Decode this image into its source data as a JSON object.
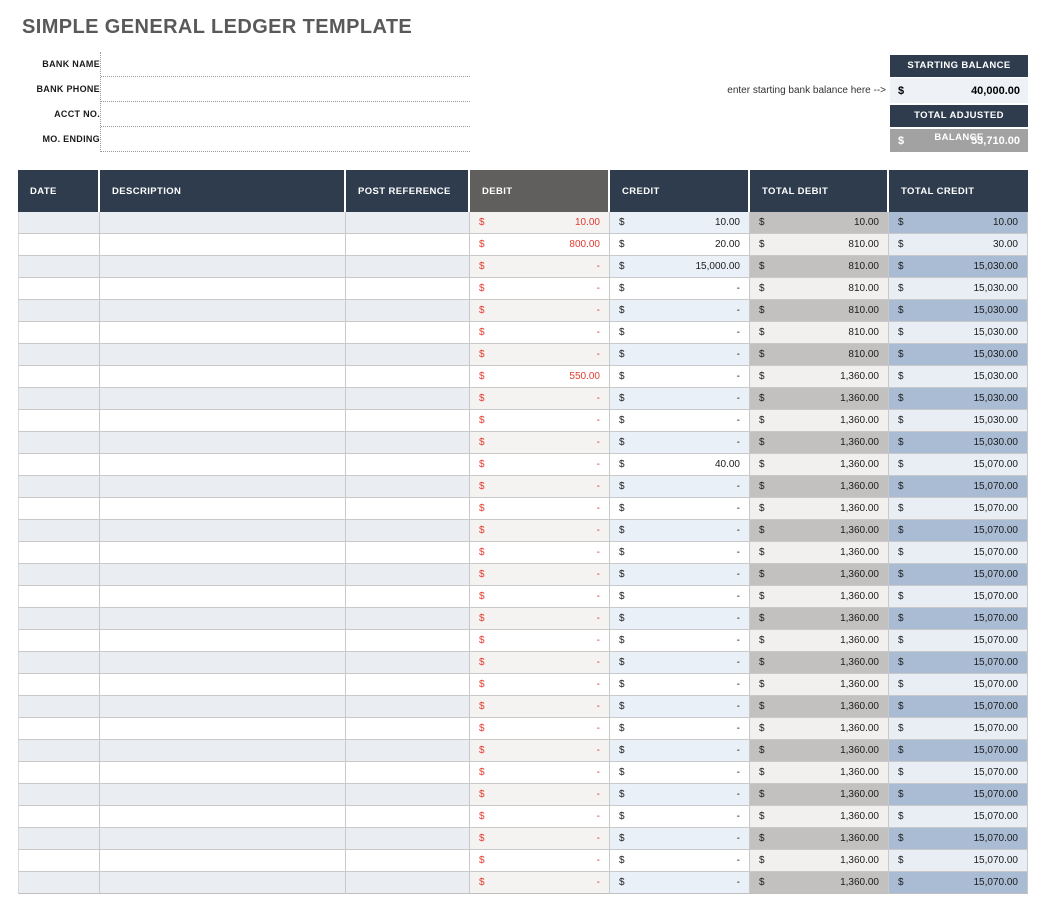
{
  "title": "SIMPLE GENERAL LEDGER TEMPLATE",
  "bank_info": {
    "fields": [
      {
        "label": "BANK NAME",
        "value": ""
      },
      {
        "label": "BANK PHONE",
        "value": ""
      },
      {
        "label": "ACCT NO.",
        "value": ""
      },
      {
        "label": "MO. ENDING",
        "value": ""
      }
    ]
  },
  "balance_panel": {
    "note": "enter starting bank balance here -->",
    "starting_balance_label": "STARTING BALANCE",
    "starting_balance_currency": "$",
    "starting_balance_value": "40,000.00",
    "adjusted_balance_label": "TOTAL ADJUSTED BALANCE",
    "adjusted_balance_currency": "$",
    "adjusted_balance_value": "53,710.00"
  },
  "colors": {
    "header_navy": "#2f3c4e",
    "debit_header_gray": "#605f5e",
    "debit_text_red": "#e23b2e",
    "adjusted_balance_gray": "#a2a2a2",
    "title_gray": "#595959",
    "total_debit_shade": "#c2c1bf",
    "total_credit_shade": "#a9bcd3"
  },
  "table": {
    "currency_symbol": "$",
    "columns": [
      "DATE",
      "DESCRIPTION",
      "POST REFERENCE",
      "DEBIT",
      "CREDIT",
      "TOTAL DEBIT",
      "TOTAL CREDIT"
    ],
    "rows": [
      {
        "date": "",
        "description": "",
        "post_reference": "",
        "debit": "10.00",
        "credit": "10.00",
        "total_debit": "10.00",
        "total_credit": "10.00"
      },
      {
        "date": "",
        "description": "",
        "post_reference": "",
        "debit": "800.00",
        "credit": "20.00",
        "total_debit": "810.00",
        "total_credit": "30.00"
      },
      {
        "date": "",
        "description": "",
        "post_reference": "",
        "debit": "-",
        "credit": "15,000.00",
        "total_debit": "810.00",
        "total_credit": "15,030.00"
      },
      {
        "date": "",
        "description": "",
        "post_reference": "",
        "debit": "-",
        "credit": "-",
        "total_debit": "810.00",
        "total_credit": "15,030.00"
      },
      {
        "date": "",
        "description": "",
        "post_reference": "",
        "debit": "-",
        "credit": "-",
        "total_debit": "810.00",
        "total_credit": "15,030.00"
      },
      {
        "date": "",
        "description": "",
        "post_reference": "",
        "debit": "-",
        "credit": "-",
        "total_debit": "810.00",
        "total_credit": "15,030.00"
      },
      {
        "date": "",
        "description": "",
        "post_reference": "",
        "debit": "-",
        "credit": "-",
        "total_debit": "810.00",
        "total_credit": "15,030.00"
      },
      {
        "date": "",
        "description": "",
        "post_reference": "",
        "debit": "550.00",
        "credit": "-",
        "total_debit": "1,360.00",
        "total_credit": "15,030.00"
      },
      {
        "date": "",
        "description": "",
        "post_reference": "",
        "debit": "-",
        "credit": "-",
        "total_debit": "1,360.00",
        "total_credit": "15,030.00"
      },
      {
        "date": "",
        "description": "",
        "post_reference": "",
        "debit": "-",
        "credit": "-",
        "total_debit": "1,360.00",
        "total_credit": "15,030.00"
      },
      {
        "date": "",
        "description": "",
        "post_reference": "",
        "debit": "-",
        "credit": "-",
        "total_debit": "1,360.00",
        "total_credit": "15,030.00"
      },
      {
        "date": "",
        "description": "",
        "post_reference": "",
        "debit": "-",
        "credit": "40.00",
        "total_debit": "1,360.00",
        "total_credit": "15,070.00"
      },
      {
        "date": "",
        "description": "",
        "post_reference": "",
        "debit": "-",
        "credit": "-",
        "total_debit": "1,360.00",
        "total_credit": "15,070.00"
      },
      {
        "date": "",
        "description": "",
        "post_reference": "",
        "debit": "-",
        "credit": "-",
        "total_debit": "1,360.00",
        "total_credit": "15,070.00"
      },
      {
        "date": "",
        "description": "",
        "post_reference": "",
        "debit": "-",
        "credit": "-",
        "total_debit": "1,360.00",
        "total_credit": "15,070.00"
      },
      {
        "date": "",
        "description": "",
        "post_reference": "",
        "debit": "-",
        "credit": "-",
        "total_debit": "1,360.00",
        "total_credit": "15,070.00"
      },
      {
        "date": "",
        "description": "",
        "post_reference": "",
        "debit": "-",
        "credit": "-",
        "total_debit": "1,360.00",
        "total_credit": "15,070.00"
      },
      {
        "date": "",
        "description": "",
        "post_reference": "",
        "debit": "-",
        "credit": "-",
        "total_debit": "1,360.00",
        "total_credit": "15,070.00"
      },
      {
        "date": "",
        "description": "",
        "post_reference": "",
        "debit": "-",
        "credit": "-",
        "total_debit": "1,360.00",
        "total_credit": "15,070.00"
      },
      {
        "date": "",
        "description": "",
        "post_reference": "",
        "debit": "-",
        "credit": "-",
        "total_debit": "1,360.00",
        "total_credit": "15,070.00"
      },
      {
        "date": "",
        "description": "",
        "post_reference": "",
        "debit": "-",
        "credit": "-",
        "total_debit": "1,360.00",
        "total_credit": "15,070.00"
      },
      {
        "date": "",
        "description": "",
        "post_reference": "",
        "debit": "-",
        "credit": "-",
        "total_debit": "1,360.00",
        "total_credit": "15,070.00"
      },
      {
        "date": "",
        "description": "",
        "post_reference": "",
        "debit": "-",
        "credit": "-",
        "total_debit": "1,360.00",
        "total_credit": "15,070.00"
      },
      {
        "date": "",
        "description": "",
        "post_reference": "",
        "debit": "-",
        "credit": "-",
        "total_debit": "1,360.00",
        "total_credit": "15,070.00"
      },
      {
        "date": "",
        "description": "",
        "post_reference": "",
        "debit": "-",
        "credit": "-",
        "total_debit": "1,360.00",
        "total_credit": "15,070.00"
      },
      {
        "date": "",
        "description": "",
        "post_reference": "",
        "debit": "-",
        "credit": "-",
        "total_debit": "1,360.00",
        "total_credit": "15,070.00"
      },
      {
        "date": "",
        "description": "",
        "post_reference": "",
        "debit": "-",
        "credit": "-",
        "total_debit": "1,360.00",
        "total_credit": "15,070.00"
      },
      {
        "date": "",
        "description": "",
        "post_reference": "",
        "debit": "-",
        "credit": "-",
        "total_debit": "1,360.00",
        "total_credit": "15,070.00"
      },
      {
        "date": "",
        "description": "",
        "post_reference": "",
        "debit": "-",
        "credit": "-",
        "total_debit": "1,360.00",
        "total_credit": "15,070.00"
      },
      {
        "date": "",
        "description": "",
        "post_reference": "",
        "debit": "-",
        "credit": "-",
        "total_debit": "1,360.00",
        "total_credit": "15,070.00"
      },
      {
        "date": "",
        "description": "",
        "post_reference": "",
        "debit": "-",
        "credit": "-",
        "total_debit": "1,360.00",
        "total_credit": "15,070.00"
      }
    ]
  }
}
